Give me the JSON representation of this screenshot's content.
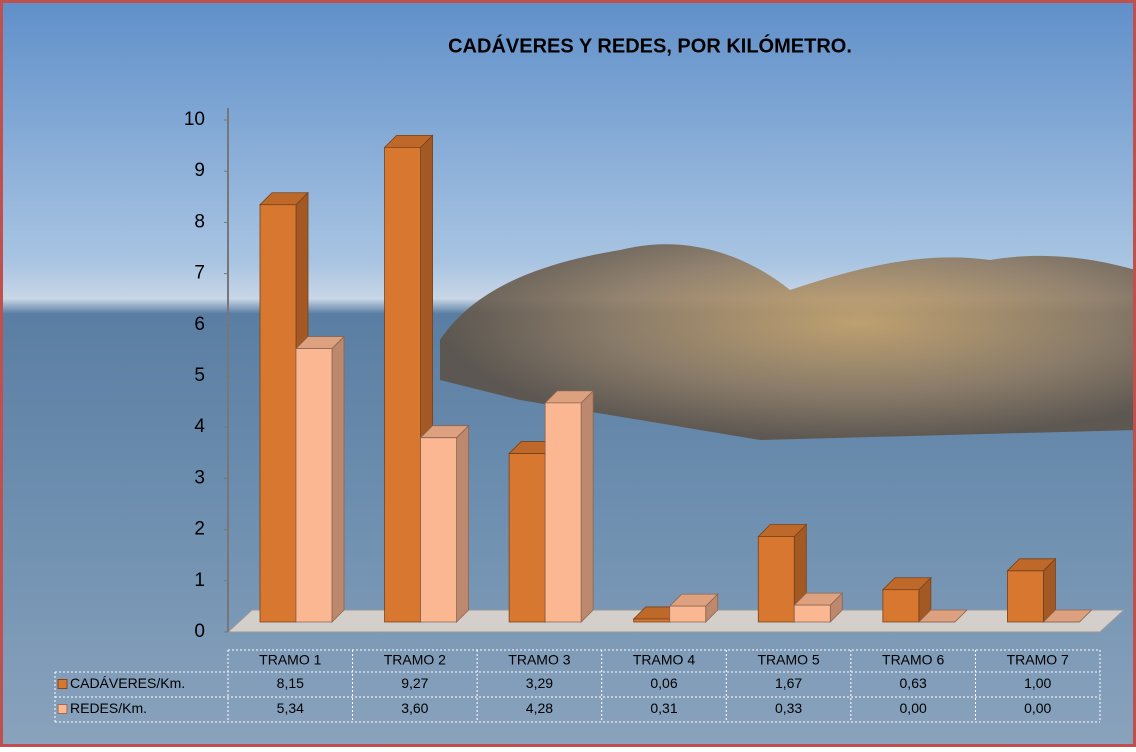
{
  "chart_data": {
    "type": "bar3d",
    "title": "CADÁVERES Y REDES, POR KILÓMETRO.",
    "categories": [
      "TRAMO 1",
      "TRAMO 2",
      "TRAMO 3",
      "TRAMO 4",
      "TRAMO 5",
      "TRAMO 6",
      "TRAMO 7"
    ],
    "series": [
      {
        "name": "CADÁVERES/Km.",
        "color": "#d8772f",
        "values": [
          8.15,
          9.27,
          3.29,
          0.06,
          1.67,
          0.63,
          1.0
        ],
        "value_labels": [
          "8,15",
          "9,27",
          "3,29",
          "0,06",
          "1,67",
          "0,63",
          "1,00"
        ]
      },
      {
        "name": "REDES/Km.",
        "color": "#fbb792",
        "values": [
          5.34,
          3.6,
          4.28,
          0.31,
          0.33,
          0.0,
          0.0
        ],
        "value_labels": [
          "5,34",
          "3,60",
          "4,28",
          "0,31",
          "0,33",
          "0,00",
          "0,00"
        ]
      }
    ],
    "ylim": [
      0,
      10
    ],
    "yticks": [
      0,
      1,
      2,
      3,
      4,
      5,
      6,
      7,
      8,
      9,
      10
    ]
  }
}
